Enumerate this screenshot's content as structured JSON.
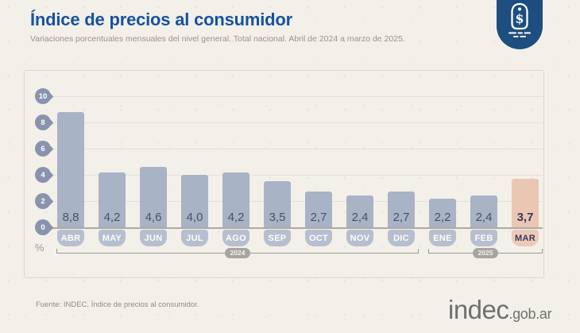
{
  "header": {
    "title": "Índice de precios al consumidor",
    "subtitle": "Variaciones porcentuales mensuales del nivel general. Total nacional. Abril de 2024 a marzo de 2025.",
    "brand_icon": "price-tag-dollar-icon"
  },
  "brand": {
    "accent_blue": "#17529e",
    "icon_navy": "#1e4d7f",
    "background_cream": "#f3f0e9"
  },
  "chart_data": {
    "type": "bar",
    "title": "Índice de precios al consumidor",
    "subtitle": "Variaciones porcentuales mensuales del nivel general. Total nacional. Abril de 2024 a marzo de 2025.",
    "categories": [
      "ABR",
      "MAY",
      "JUN",
      "JUL",
      "AGO",
      "SEP",
      "OCT",
      "NOV",
      "DIC",
      "ENE",
      "FEB",
      "MAR"
    ],
    "values": [
      8.8,
      4.2,
      4.6,
      4.0,
      4.2,
      3.5,
      2.7,
      2.4,
      2.7,
      2.2,
      2.4,
      3.7
    ],
    "value_labels": [
      "8,8",
      "4,2",
      "4,6",
      "4,0",
      "4,2",
      "3,5",
      "2,7",
      "2,4",
      "2,7",
      "2,2",
      "2,4",
      "3,7"
    ],
    "highlighted_index": 11,
    "highlighted_month": "MAR",
    "unit": "%",
    "xlabel": "",
    "ylabel": "%",
    "ylim": [
      0,
      10
    ],
    "y_ticks": [
      0,
      2,
      4,
      6,
      8,
      10
    ],
    "grid": true,
    "legend": false,
    "year_groups": [
      {
        "label": "2024",
        "start_index": 0,
        "end_index": 8
      },
      {
        "label": "2025",
        "start_index": 9,
        "end_index": 11
      }
    ],
    "colors": {
      "bar": "#a9b3c6",
      "bar_highlighted": "#ebc6b3",
      "month_badge": "#b6bfd0",
      "month_badge_highlighted": "#edc9b6",
      "value_text": "#46516d",
      "value_text_highlighted": "#333b5e",
      "y_tick_badge": "#8a93ad",
      "year_pill": "#a6a69e"
    }
  },
  "footer": {
    "source": "Fuente: INDEC, Índice de precios al consumidor.",
    "logo_main": "indec",
    "logo_suffix": ".gob.ar"
  }
}
